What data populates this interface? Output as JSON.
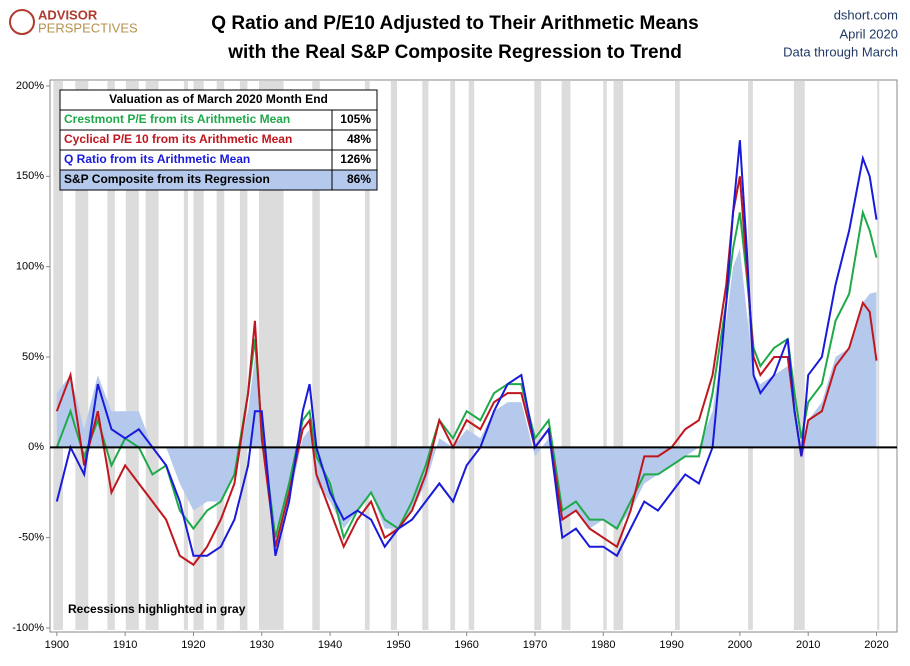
{
  "chart_data": {
    "type": "line",
    "title": "Q Ratio and P/E10 Adjusted to Their Arithmetic Means",
    "subtitle": "with the Real S&P Composite Regression to Trend",
    "logo": [
      "ADVISOR",
      "PERSPECTIVES"
    ],
    "source": [
      "dshort.com",
      "April 2020",
      "Data through March"
    ],
    "annotation": "Recessions highlighted in gray",
    "xlim": [
      1899,
      2023
    ],
    "xticks": [
      1900,
      1910,
      1920,
      1930,
      1940,
      1950,
      1960,
      1970,
      1980,
      1990,
      2000,
      2010,
      2020
    ],
    "ylim": [
      -100,
      200
    ],
    "yticks": [
      {
        "value": -100,
        "label": "-100%"
      },
      {
        "value": -50,
        "label": "-50%"
      },
      {
        "value": 0,
        "label": "0%"
      },
      {
        "value": 50,
        "label": "50%"
      },
      {
        "value": 100,
        "label": "100%"
      },
      {
        "value": 150,
        "label": "150%"
      },
      {
        "value": 200,
        "label": "200%"
      }
    ],
    "recession_color": "#dcdcdc",
    "recessions": [
      [
        1899.5,
        1900.9
      ],
      [
        1902.7,
        1904.6
      ],
      [
        1907.4,
        1908.5
      ],
      [
        1910.1,
        1912
      ],
      [
        1913,
        1914.9
      ],
      [
        1918.6,
        1919.2
      ],
      [
        1920,
        1921.5
      ],
      [
        1923.4,
        1924.5
      ],
      [
        1926.8,
        1927.9
      ],
      [
        1929.6,
        1933.2
      ],
      [
        1937.4,
        1938.5
      ],
      [
        1945.1,
        1945.8
      ],
      [
        1948.9,
        1949.8
      ],
      [
        1953.5,
        1954.4
      ],
      [
        1957.6,
        1958.3
      ],
      [
        1960.3,
        1961.1
      ],
      [
        1969.9,
        1970.9
      ],
      [
        1973.9,
        1975.2
      ],
      [
        1980,
        1980.5
      ],
      [
        1981.5,
        1982.9
      ],
      [
        1990.5,
        1991.2
      ],
      [
        2001.2,
        2001.9
      ],
      [
        2007.9,
        2009.5
      ],
      [
        2020.1,
        2020.4
      ]
    ],
    "x": [
      1900,
      1902,
      1904,
      1906,
      1908,
      1910,
      1912,
      1914,
      1916,
      1918,
      1920,
      1922,
      1924,
      1926,
      1928,
      1929,
      1930,
      1932,
      1934,
      1936,
      1937,
      1938,
      1940,
      1942,
      1944,
      1946,
      1948,
      1950,
      1952,
      1954,
      1956,
      1958,
      1960,
      1962,
      1964,
      1966,
      1968,
      1970,
      1972,
      1974,
      1976,
      1978,
      1980,
      1982,
      1984,
      1986,
      1988,
      1990,
      1992,
      1994,
      1996,
      1998,
      1999,
      2000,
      2001,
      2002,
      2003,
      2005,
      2007,
      2008,
      2009,
      2010,
      2012,
      2014,
      2016,
      2018,
      2019,
      2020
    ],
    "legend_table": {
      "title": "Valuation as of March 2020 Month End",
      "values": [
        "105%",
        "48%",
        "126%",
        "86%"
      ]
    },
    "series": [
      {
        "name": "Crestmont P/E from its Arithmetic Mean",
        "color": "#1faa4a",
        "style": "line",
        "values": [
          0,
          20,
          -5,
          15,
          -10,
          5,
          0,
          -15,
          -10,
          -35,
          -45,
          -35,
          -30,
          -15,
          30,
          60,
          10,
          -50,
          -20,
          15,
          20,
          -5,
          -20,
          -50,
          -35,
          -25,
          -40,
          -45,
          -30,
          -10,
          15,
          5,
          20,
          15,
          30,
          35,
          35,
          5,
          15,
          -35,
          -30,
          -40,
          -40,
          -45,
          -30,
          -15,
          -15,
          -10,
          -5,
          -5,
          30,
          80,
          110,
          130,
          95,
          55,
          45,
          55,
          60,
          30,
          5,
          25,
          35,
          70,
          85,
          130,
          120,
          105
        ]
      },
      {
        "name": "Cyclical P/E 10 from its Arithmetic Mean",
        "color": "#c0161d",
        "style": "line",
        "values": [
          20,
          40,
          -10,
          20,
          -25,
          -10,
          -20,
          -30,
          -40,
          -60,
          -65,
          -55,
          -40,
          -20,
          30,
          70,
          5,
          -55,
          -25,
          10,
          15,
          -15,
          -35,
          -55,
          -40,
          -30,
          -50,
          -45,
          -35,
          -15,
          15,
          0,
          15,
          10,
          25,
          30,
          30,
          0,
          10,
          -40,
          -35,
          -45,
          -50,
          -55,
          -35,
          -5,
          -5,
          0,
          10,
          15,
          40,
          90,
          130,
          150,
          100,
          50,
          40,
          50,
          50,
          20,
          -5,
          15,
          20,
          45,
          55,
          80,
          75,
          48
        ]
      },
      {
        "name": "Q Ratio from its Arithmetic Mean",
        "color": "#1a1adb",
        "style": "line",
        "values": [
          -30,
          0,
          -15,
          35,
          10,
          5,
          10,
          0,
          -10,
          -30,
          -60,
          -60,
          -55,
          -40,
          -10,
          20,
          20,
          -60,
          -30,
          20,
          35,
          0,
          -25,
          -40,
          -35,
          -40,
          -55,
          -45,
          -40,
          -30,
          -20,
          -30,
          -10,
          0,
          20,
          35,
          40,
          0,
          10,
          -50,
          -45,
          -55,
          -55,
          -60,
          -45,
          -30,
          -35,
          -25,
          -15,
          -20,
          0,
          80,
          130,
          170,
          110,
          40,
          30,
          40,
          60,
          20,
          -5,
          40,
          50,
          90,
          120,
          160,
          150,
          126
        ]
      },
      {
        "name": "S&P Composite from its Regression",
        "color": "#b4c9ec",
        "style": "area",
        "values": [
          30,
          40,
          10,
          40,
          20,
          20,
          20,
          0,
          0,
          -20,
          -35,
          -30,
          -30,
          -15,
          20,
          50,
          10,
          -45,
          -30,
          5,
          10,
          -20,
          -30,
          -45,
          -35,
          -25,
          -45,
          -45,
          -35,
          -20,
          5,
          0,
          10,
          5,
          20,
          25,
          25,
          -5,
          5,
          -40,
          -35,
          -45,
          -40,
          -45,
          -35,
          -20,
          -15,
          -10,
          -5,
          0,
          20,
          70,
          100,
          110,
          75,
          40,
          35,
          40,
          45,
          20,
          -5,
          15,
          25,
          50,
          55,
          80,
          85,
          86
        ]
      }
    ]
  }
}
